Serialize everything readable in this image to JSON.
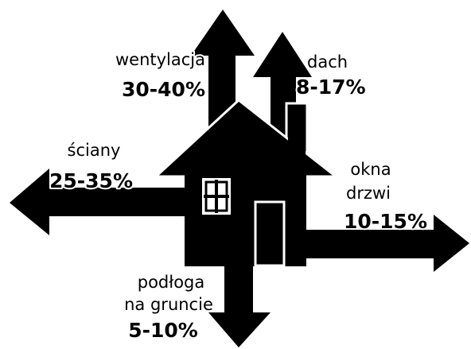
{
  "items": [
    {
      "label": [
        "wentylacja"
      ],
      "value": "30-40%"
    },
    {
      "label": [
        "dach"
      ],
      "value": "8-17%"
    },
    {
      "label": [
        "ściany"
      ],
      "value": "25-35%"
    },
    {
      "label": [
        "okna",
        "drzwi"
      ],
      "value": "10-15%"
    },
    {
      "label": [
        "podłoga",
        "na gruncie"
      ],
      "value": "5-10%"
    }
  ]
}
